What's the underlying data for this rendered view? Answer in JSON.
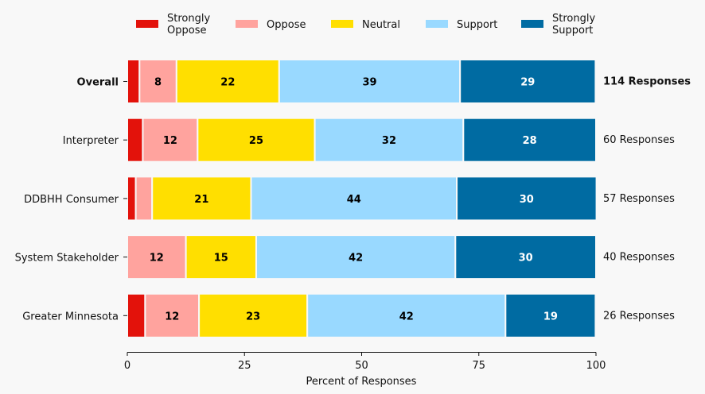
{
  "chart_data": {
    "type": "bar",
    "orientation": "horizontal-stacked",
    "title": "",
    "xlabel": "Percent of Responses",
    "ylabel": "",
    "xlim": [
      0,
      100
    ],
    "xticks": [
      0,
      25,
      50,
      75,
      100
    ],
    "grid": false,
    "legend_position": "top",
    "legend": [
      "Strongly Oppose",
      "Oppose",
      "Neutral",
      "Support",
      "Strongly Support"
    ],
    "colors": [
      "#e3120b",
      "#ffa39e",
      "#ffdf00",
      "#99d9ff",
      "#006ba2"
    ],
    "label_colors": [
      "#000000",
      "#000000",
      "#000000",
      "#000000",
      "#ffffff"
    ],
    "categories": [
      "Overall",
      "Interpreter",
      "DDBHH Consumer",
      "System Stakeholder",
      "Greater Minnesota"
    ],
    "bold_categories": [
      "Overall"
    ],
    "series": [
      {
        "name": "Strongly Oppose",
        "values": [
          2.6,
          3.3,
          1.8,
          0,
          3.8
        ],
        "labels": [
          "",
          "",
          "",
          "",
          ""
        ]
      },
      {
        "name": "Oppose",
        "values": [
          7.9,
          11.7,
          3.5,
          12.5,
          11.5
        ],
        "labels": [
          "8",
          "12",
          "",
          "12",
          "12"
        ]
      },
      {
        "name": "Neutral",
        "values": [
          21.9,
          25.0,
          21.1,
          15.0,
          23.1
        ],
        "labels": [
          "22",
          "25",
          "21",
          "15",
          "23"
        ]
      },
      {
        "name": "Support",
        "values": [
          38.6,
          31.7,
          43.9,
          42.5,
          42.3
        ],
        "labels": [
          "39",
          "32",
          "44",
          "42",
          "42"
        ]
      },
      {
        "name": "Strongly Support",
        "values": [
          28.9,
          28.3,
          29.8,
          30.0,
          19.2
        ],
        "labels": [
          "29",
          "28",
          "30",
          "30",
          "19"
        ]
      }
    ],
    "response_labels": [
      "114 Responses",
      "60 Responses",
      "57 Responses",
      "40 Responses",
      "26 Responses"
    ]
  }
}
